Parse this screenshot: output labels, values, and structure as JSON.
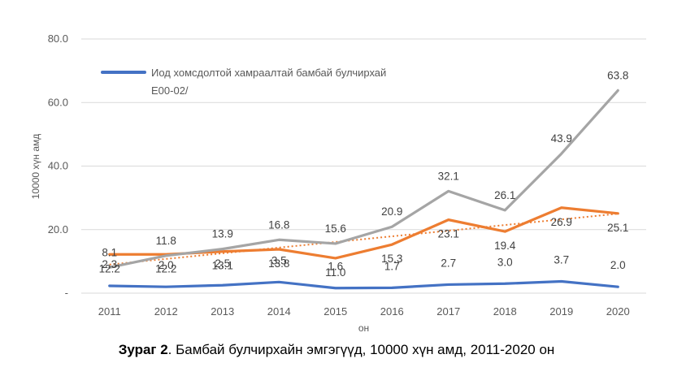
{
  "chart_data": {
    "type": "line",
    "title": "",
    "xlabel": "он",
    "ylabel": "10000 хүн амд",
    "ylim": [
      0,
      80
    ],
    "yticks": [
      {
        "value": 0,
        "label": "-"
      },
      {
        "value": 20,
        "label": "20.0"
      },
      {
        "value": 40,
        "label": "40.0"
      },
      {
        "value": 60,
        "label": "60.0"
      },
      {
        "value": 80,
        "label": "80.0"
      }
    ],
    "grid": true,
    "legend_position": "top-left",
    "legend_entries": [
      {
        "series_index": 0,
        "text_lines": [
          "Иод хомсдолтой хамраалтай бамбай булчирхай",
          "E00-02/"
        ]
      }
    ],
    "categories": [
      "2011",
      "2012",
      "2013",
      "2014",
      "2015",
      "2016",
      "2017",
      "2018",
      "2019",
      "2020"
    ],
    "series": [
      {
        "name": "Иод хомсдолтой хамраалтай бамбай булчирхай E00-02/",
        "color": "#4472C4",
        "values": [
          2.3,
          2.0,
          2.5,
          3.5,
          1.6,
          1.7,
          2.7,
          3.0,
          3.7,
          2.0
        ],
        "labels": [
          "2.3",
          "2.0",
          "2.5",
          "3.5",
          "1.6",
          "1.7",
          "2.7",
          "3.0",
          "3.7",
          "2.0"
        ]
      },
      {
        "name": "",
        "color": "#ED7D31",
        "values": [
          12.2,
          12.2,
          13.1,
          13.8,
          11.0,
          15.3,
          23.1,
          19.4,
          26.9,
          25.1
        ],
        "labels": [
          "12.2",
          "12.2",
          "13.1",
          "13.8",
          "11.0",
          "15.3",
          "23.1",
          "19.4",
          "26.9",
          "25.1"
        ]
      },
      {
        "name": "",
        "color": "#A5A5A5",
        "values": [
          8.1,
          11.8,
          13.9,
          16.8,
          15.6,
          20.9,
          32.1,
          26.1,
          43.9,
          63.8
        ],
        "labels": [
          "8.1",
          "11.8",
          "13.9",
          "16.8",
          "15.6",
          "20.9",
          "32.1",
          "26.1",
          "43.9",
          "63.8"
        ]
      }
    ],
    "trendline": {
      "of_series": 1,
      "style": "dotted",
      "color": "#ED7D31",
      "start": 9.0,
      "end": 25.0
    }
  },
  "caption": {
    "figure_label": "Зураг 2",
    "text": ". Бамбай булчирхайн эмгэгүүд, 10000 хүн амд, 2011-2020 он"
  }
}
